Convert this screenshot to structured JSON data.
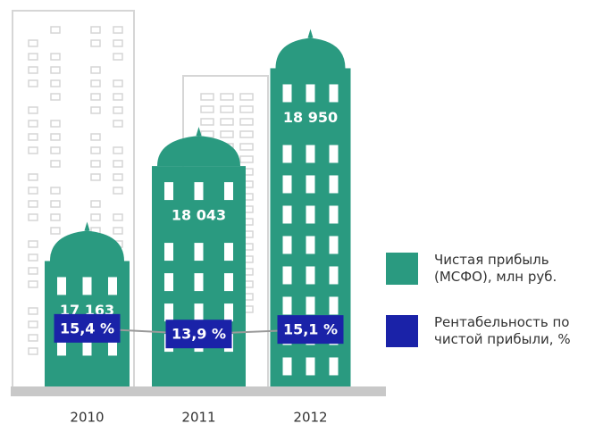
{
  "chart_data": {
    "type": "bar",
    "categories": [
      "2010",
      "2011",
      "2012"
    ],
    "series": [
      {
        "name": "Чистая прибыль (МСФО), млн руб.",
        "color": "#2a9a80",
        "values": [
          17163,
          18043,
          18950
        ],
        "value_labels": [
          "17 163",
          "18 043",
          "18 950"
        ]
      },
      {
        "name": "Рентабельность по чистой прибыли, %",
        "color": "#1a22a8",
        "values": [
          15.4,
          13.9,
          15.1
        ],
        "value_labels": [
          "15,4 %",
          "13,9 %",
          "15,1 %"
        ],
        "axis": "y2",
        "type": "line"
      }
    ],
    "ylim": [
      16000,
      19500
    ],
    "y2lim": [
      0,
      100
    ]
  }
}
